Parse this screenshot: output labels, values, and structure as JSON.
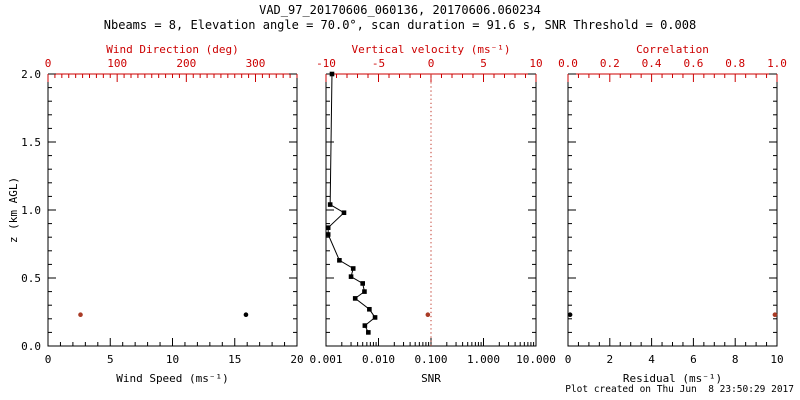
{
  "header": {
    "title": "VAD_97_20170606_060136, 20170606.060234",
    "subtitle": "Nbeams = 8, Elevation angle = 70.0°, scan duration = 91.6 s, SNR Threshold = 0.008"
  },
  "footer": {
    "created": "Plot created on Thu Jun  8 23:50:29 2017"
  },
  "colors": {
    "black": "#000000",
    "axis_red": "#cc0000",
    "marker_red": "#a93b26",
    "dotted_red": "#c0392b",
    "background": "#ffffff"
  },
  "chart_data": {
    "type": "scatter",
    "title": "VAD_97_20170606_060136, 20170606.060234",
    "subtitle": "Nbeams = 8, Elevation angle = 70.0°, scan duration = 91.6 s, SNR Threshold = 0.008",
    "yaxis": {
      "label": "z (km AGL)",
      "lim": [
        0,
        2
      ],
      "ticks": [
        0,
        0.5,
        1,
        1.5,
        2
      ],
      "tick_labels": [
        "0.0",
        "0.5",
        "1.0",
        "1.5",
        "2.0"
      ],
      "minor": 0.1
    },
    "panels": [
      {
        "id": "wind-speed-direction",
        "bottom_axis": {
          "label": "Wind Speed (ms⁻¹)",
          "scale": "linear",
          "lim": [
            0,
            20
          ],
          "ticks": [
            0,
            5,
            10,
            15,
            20
          ],
          "tick_labels": [
            "0",
            "5",
            "10",
            "15",
            "20"
          ],
          "minor": 1,
          "color": "black"
        },
        "top_axis": {
          "label": "Wind Direction (deg)",
          "scale": "linear",
          "lim": [
            0,
            360
          ],
          "ticks": [
            0,
            100,
            200,
            300
          ],
          "tick_labels": [
            "0",
            "100",
            "200",
            "300"
          ],
          "minor": 10,
          "color": "red"
        },
        "points": [
          {
            "series": "wind-direction",
            "axis": "top",
            "x": 47,
            "z": 0.23,
            "color": "red"
          },
          {
            "series": "wind-speed",
            "axis": "bottom",
            "x": 15.9,
            "z": 0.23,
            "color": "black"
          }
        ]
      },
      {
        "id": "snr-vertical-velocity",
        "bottom_axis": {
          "label": "SNR",
          "scale": "log",
          "lim": [
            0.001,
            10
          ],
          "ticks": [
            0.001,
            0.01,
            0.1,
            1,
            10
          ],
          "tick_labels": [
            "0.001",
            "0.010",
            "0.100",
            "1.000",
            "10.000"
          ],
          "color": "black"
        },
        "top_axis": {
          "label": "Vertical velocity (ms⁻¹)",
          "scale": "linear",
          "lim": [
            -10,
            10
          ],
          "ticks": [
            -10,
            -5,
            0,
            5,
            10
          ],
          "tick_labels": [
            "-10",
            "-5",
            "0",
            "5",
            "10"
          ],
          "minor": 1,
          "color": "red"
        },
        "zero_line": {
          "axis": "top",
          "x": 0,
          "style": "dotted",
          "color": "red"
        },
        "profile": {
          "series": "snr-profile",
          "axis": "bottom",
          "color": "black",
          "points": [
            [
              0.0013,
              2.0
            ],
            [
              0.0012,
              1.04
            ],
            [
              0.0022,
              0.98
            ],
            [
              0.0011,
              0.87
            ],
            [
              0.0011,
              0.82
            ],
            [
              0.0018,
              0.63
            ],
            [
              0.0033,
              0.57
            ],
            [
              0.003,
              0.51
            ],
            [
              0.005,
              0.46
            ],
            [
              0.0054,
              0.4
            ],
            [
              0.0036,
              0.35
            ],
            [
              0.0067,
              0.27
            ],
            [
              0.0086,
              0.21
            ],
            [
              0.0055,
              0.15
            ],
            [
              0.0064,
              0.1
            ]
          ]
        },
        "points": [
          {
            "series": "vertical-velocity",
            "axis": "top",
            "x": -0.3,
            "z": 0.23,
            "color": "red"
          }
        ]
      },
      {
        "id": "residual-correlation",
        "bottom_axis": {
          "label": "Residual (ms⁻¹)",
          "scale": "linear",
          "lim": [
            0,
            10
          ],
          "ticks": [
            0,
            2,
            4,
            6,
            8,
            10
          ],
          "tick_labels": [
            "0",
            "2",
            "4",
            "6",
            "8",
            "10"
          ],
          "minor": 0.5,
          "color": "black"
        },
        "top_axis": {
          "label": "Correlation",
          "scale": "linear",
          "lim": [
            0,
            1
          ],
          "ticks": [
            0,
            0.2,
            0.4,
            0.6,
            0.8,
            1
          ],
          "tick_labels": [
            "0.0",
            "0.2",
            "0.4",
            "0.6",
            "0.8",
            "1.0"
          ],
          "minor": 0.05,
          "color": "red"
        },
        "points": [
          {
            "series": "residual",
            "axis": "bottom",
            "x": 0.1,
            "z": 0.23,
            "color": "black"
          },
          {
            "series": "correlation",
            "axis": "top",
            "x": 0.99,
            "z": 0.23,
            "color": "red"
          }
        ]
      }
    ]
  }
}
